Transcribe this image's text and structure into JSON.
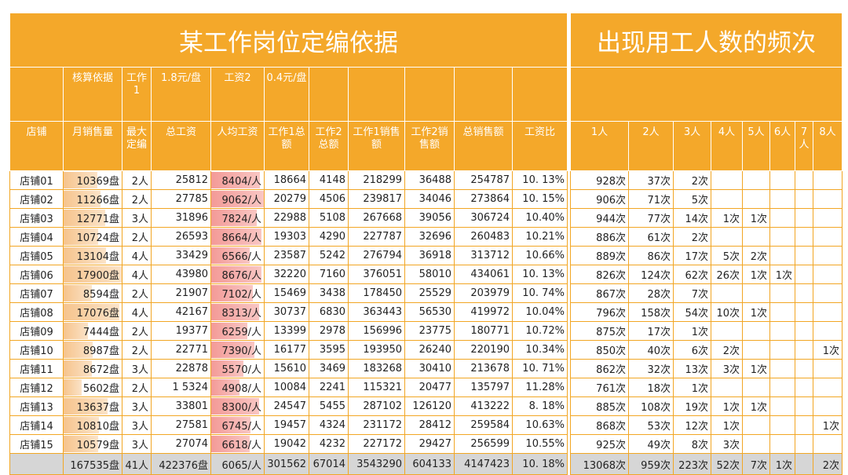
{
  "left": {
    "title": "某工作岗位定编依据",
    "header_rows": [
      [
        null,
        "核算依据",
        "工作1",
        "1.8元/盘",
        "工资2",
        "0.4元/盘",
        null,
        null,
        null,
        null,
        null
      ],
      [
        "店铺",
        "月销售量",
        "最大定编",
        "总工资",
        "人均工资",
        "工作1总额",
        "工作2总额",
        "工作1销售额",
        "工作2销售额",
        "总销售额",
        "工资比"
      ]
    ],
    "rows": [
      [
        "店铺01",
        "10369盘",
        "2人",
        "25812",
        "8404/人",
        "18664",
        "4148",
        "218299",
        "36488",
        "254787",
        "10. 13%"
      ],
      [
        "店铺02",
        "11266盘",
        "2人",
        "27785",
        "9062/人",
        "20279",
        "4506",
        "239817",
        "34046",
        "273864",
        "10. 15%"
      ],
      [
        "店铺03",
        "12771盘",
        "3人",
        "31896",
        "7824/人",
        "22988",
        "5108",
        "267668",
        "39056",
        "306724",
        "10.40%"
      ],
      [
        "店铺04",
        "10724盘",
        "2人",
        "26593",
        "8664/人",
        "19303",
        "4290",
        "227787",
        "32696",
        "260483",
        "10.21%"
      ],
      [
        "店铺05",
        "13104盘",
        "4人",
        "33429",
        "6566/人",
        "23587",
        "5242",
        "276794",
        "36918",
        "313712",
        "10.66%"
      ],
      [
        "店铺06",
        "17900盘",
        "4人",
        "43980",
        "8676/人",
        "32220",
        "7160",
        "376051",
        "58010",
        "434061",
        "10. 13%"
      ],
      [
        "店铺07",
        "8594盘",
        "2人",
        "21907",
        "7102/人",
        "15469",
        "3438",
        "178450",
        "25529",
        "203979",
        "10. 74%"
      ],
      [
        "店铺08",
        "17076盘",
        "4人",
        "42167",
        "8313/人",
        "30737",
        "6830",
        "363443",
        "56530",
        "419972",
        "10.04%"
      ],
      [
        "店铺09",
        "7444盘",
        "2人",
        "19377",
        "6259/人",
        "13399",
        "2978",
        "156996",
        "23775",
        "180771",
        "10.72%"
      ],
      [
        "店铺10",
        "8987盘",
        "2人",
        "22771",
        "7390/人",
        "16177",
        "3595",
        "193950",
        "26240",
        "220190",
        "10.34%"
      ],
      [
        "店铺11",
        "8672盘",
        "3人",
        "22878",
        "5570/人",
        "15610",
        "3469",
        "183268",
        "30410",
        "213678",
        "10. 71%"
      ],
      [
        "店铺12",
        "5602盘",
        "2人",
        "1 5324",
        "4908/人",
        "10084",
        "2241",
        "115321",
        "20477",
        "135797",
        "11.28%"
      ],
      [
        "店铺13",
        "13637盘",
        "3人",
        "33801",
        "8300/人",
        "24547",
        "5455",
        "287102",
        "126120",
        "413222",
        "8. 18%"
      ],
      [
        "店铺14",
        "10810盘",
        "3人",
        "27581",
        "6745/人",
        "19457",
        "4324",
        "231172",
        "28412",
        "259584",
        "10.63%"
      ],
      [
        "店铺15",
        "10579盘",
        "3人",
        "27074",
        "6618/人",
        "19042",
        "4232",
        "227172",
        "29427",
        "256599",
        "10.55%"
      ]
    ],
    "total": [
      null,
      "167535盘",
      "41人",
      "422376盘",
      "6065/人",
      "301562",
      "67014",
      "3543290",
      "604133",
      "4147423",
      "10. 18%"
    ]
  },
  "right": {
    "title": "出现用工人数的频次",
    "columns": [
      "1人",
      "2人",
      "3人",
      "4人",
      "5人",
      "6人",
      "7人",
      "8人"
    ],
    "rows": [
      [
        "928次",
        "37次",
        "2次",
        null,
        null,
        null,
        null,
        null
      ],
      [
        "906次",
        "71次",
        "5次",
        null,
        null,
        null,
        null,
        null
      ],
      [
        "944次",
        "77次",
        "14次",
        "1次",
        "1次",
        null,
        null,
        null
      ],
      [
        "886次",
        "61次",
        "2次",
        null,
        null,
        null,
        null,
        null
      ],
      [
        "889次",
        "86次",
        "17次",
        "5次",
        "2次",
        null,
        null,
        null
      ],
      [
        "826次",
        "124次",
        "62次",
        "26次",
        "1次",
        "1次",
        null,
        null
      ],
      [
        "867次",
        "28次",
        "7次",
        null,
        null,
        null,
        null,
        null
      ],
      [
        "796次",
        "158次",
        "54次",
        "10次",
        "1次",
        null,
        null,
        null
      ],
      [
        "875次",
        "17次",
        "1次",
        null,
        null,
        null,
        null,
        null
      ],
      [
        "850次",
        "40次",
        "6次",
        "2次",
        null,
        null,
        null,
        "1次"
      ],
      [
        "862次",
        "32次",
        "13次",
        "3次",
        "1次",
        null,
        null,
        null
      ],
      [
        "761次",
        "18次",
        "1次",
        null,
        null,
        null,
        null,
        null
      ],
      [
        "885次",
        "108次",
        "19次",
        "1次",
        "1次",
        null,
        null,
        null
      ],
      [
        "868次",
        "53次",
        "12次",
        "1次",
        null,
        null,
        null,
        "1次"
      ],
      [
        "925次",
        "49次",
        "8次",
        "3次",
        null,
        null,
        null,
        null
      ]
    ],
    "total": [
      "13068次",
      "959次",
      "223次",
      "52次",
      "7次",
      "1次",
      null,
      "2次"
    ]
  }
}
